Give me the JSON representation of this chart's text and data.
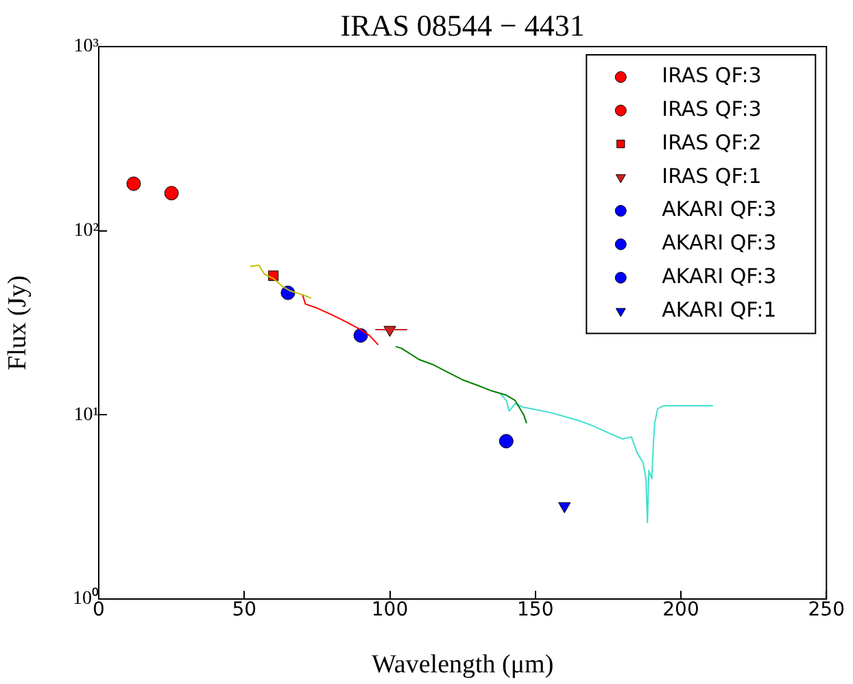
{
  "chart_data": {
    "type": "scatter",
    "title": "IRAS 08544 − 4431",
    "xlabel": "Wavelength (μm)",
    "ylabel": "Flux (Jy)",
    "xlim": [
      0,
      250
    ],
    "xticks": [
      0,
      50,
      100,
      150,
      200,
      250
    ],
    "ylim": [
      1,
      1000
    ],
    "yticks": [
      {
        "value": 1,
        "label": "10⁰"
      },
      {
        "value": 10,
        "label": "10¹"
      },
      {
        "value": 100,
        "label": "10²"
      },
      {
        "value": 1000,
        "label": "10³"
      }
    ],
    "log": "y",
    "grid": false,
    "legend": "top right",
    "series": [
      {
        "type": "line",
        "color": "#bfbf00",
        "marker": "none",
        "x": [
          52,
          55,
          57,
          60,
          63,
          66,
          70,
          73
        ],
        "values": [
          64,
          65,
          58,
          55,
          50,
          47,
          45,
          43
        ]
      },
      {
        "type": "line",
        "color": "#ff0000",
        "marker": "none",
        "x": [
          70,
          71,
          75,
          80,
          85,
          90,
          93,
          95,
          96
        ],
        "values": [
          45,
          40,
          38,
          35,
          32,
          29,
          27,
          25,
          24
        ]
      },
      {
        "type": "line",
        "color": "#008000",
        "marker": "none",
        "x": [
          102,
          104,
          110,
          115,
          120,
          125,
          130,
          135,
          140,
          143,
          146,
          147
        ],
        "values": [
          23.5,
          23,
          20,
          18.7,
          17,
          15.5,
          14.5,
          13.5,
          12.8,
          12,
          10,
          9
        ]
      },
      {
        "type": "line",
        "color": "#40e0d0",
        "marker": "none",
        "x": [
          138,
          140,
          141,
          143,
          146,
          150,
          155,
          160,
          165,
          170,
          175,
          180,
          183,
          185,
          187,
          188,
          188.5,
          189,
          190,
          190.5,
          191,
          192,
          194,
          211
        ],
        "values": [
          13,
          12,
          10.5,
          11.5,
          11,
          10.7,
          10.3,
          9.8,
          9.3,
          8.7,
          8,
          7.4,
          7.6,
          6.2,
          5.5,
          4.5,
          2.6,
          5,
          4.5,
          6.8,
          9,
          10.8,
          11.2,
          11.2
        ]
      },
      {
        "name": "IRAS QF:3",
        "color": "#ff0000",
        "marker": "circle",
        "x": [
          12
        ],
        "values": [
          180
        ]
      },
      {
        "name": "IRAS QF:3",
        "color": "#ff0000",
        "marker": "circle",
        "x": [
          25
        ],
        "values": [
          160
        ]
      },
      {
        "name": "IRAS QF:2",
        "color": "#ff0000",
        "marker": "square",
        "x": [
          60
        ],
        "values": [
          57
        ]
      },
      {
        "name": "IRAS QF:1",
        "color": "#cc2222",
        "marker": "triangle",
        "x": [
          100
        ],
        "values": [
          29
        ],
        "xerrors": [
          [
            95,
            106
          ]
        ]
      },
      {
        "name": "AKARI QF:3",
        "color": "#0000ff",
        "marker": "circle",
        "x": [
          65
        ],
        "values": [
          46
        ]
      },
      {
        "name": "AKARI QF:3",
        "color": "#0000ff",
        "marker": "circle",
        "x": [
          90
        ],
        "values": [
          27
        ]
      },
      {
        "name": "AKARI QF:3",
        "color": "#0000ff",
        "marker": "circle",
        "x": [
          140
        ],
        "values": [
          7.2
        ]
      },
      {
        "name": "AKARI QF:1",
        "color": "#0000ff",
        "marker": "triangle",
        "x": [
          160
        ],
        "values": [
          3.2
        ]
      }
    ]
  }
}
